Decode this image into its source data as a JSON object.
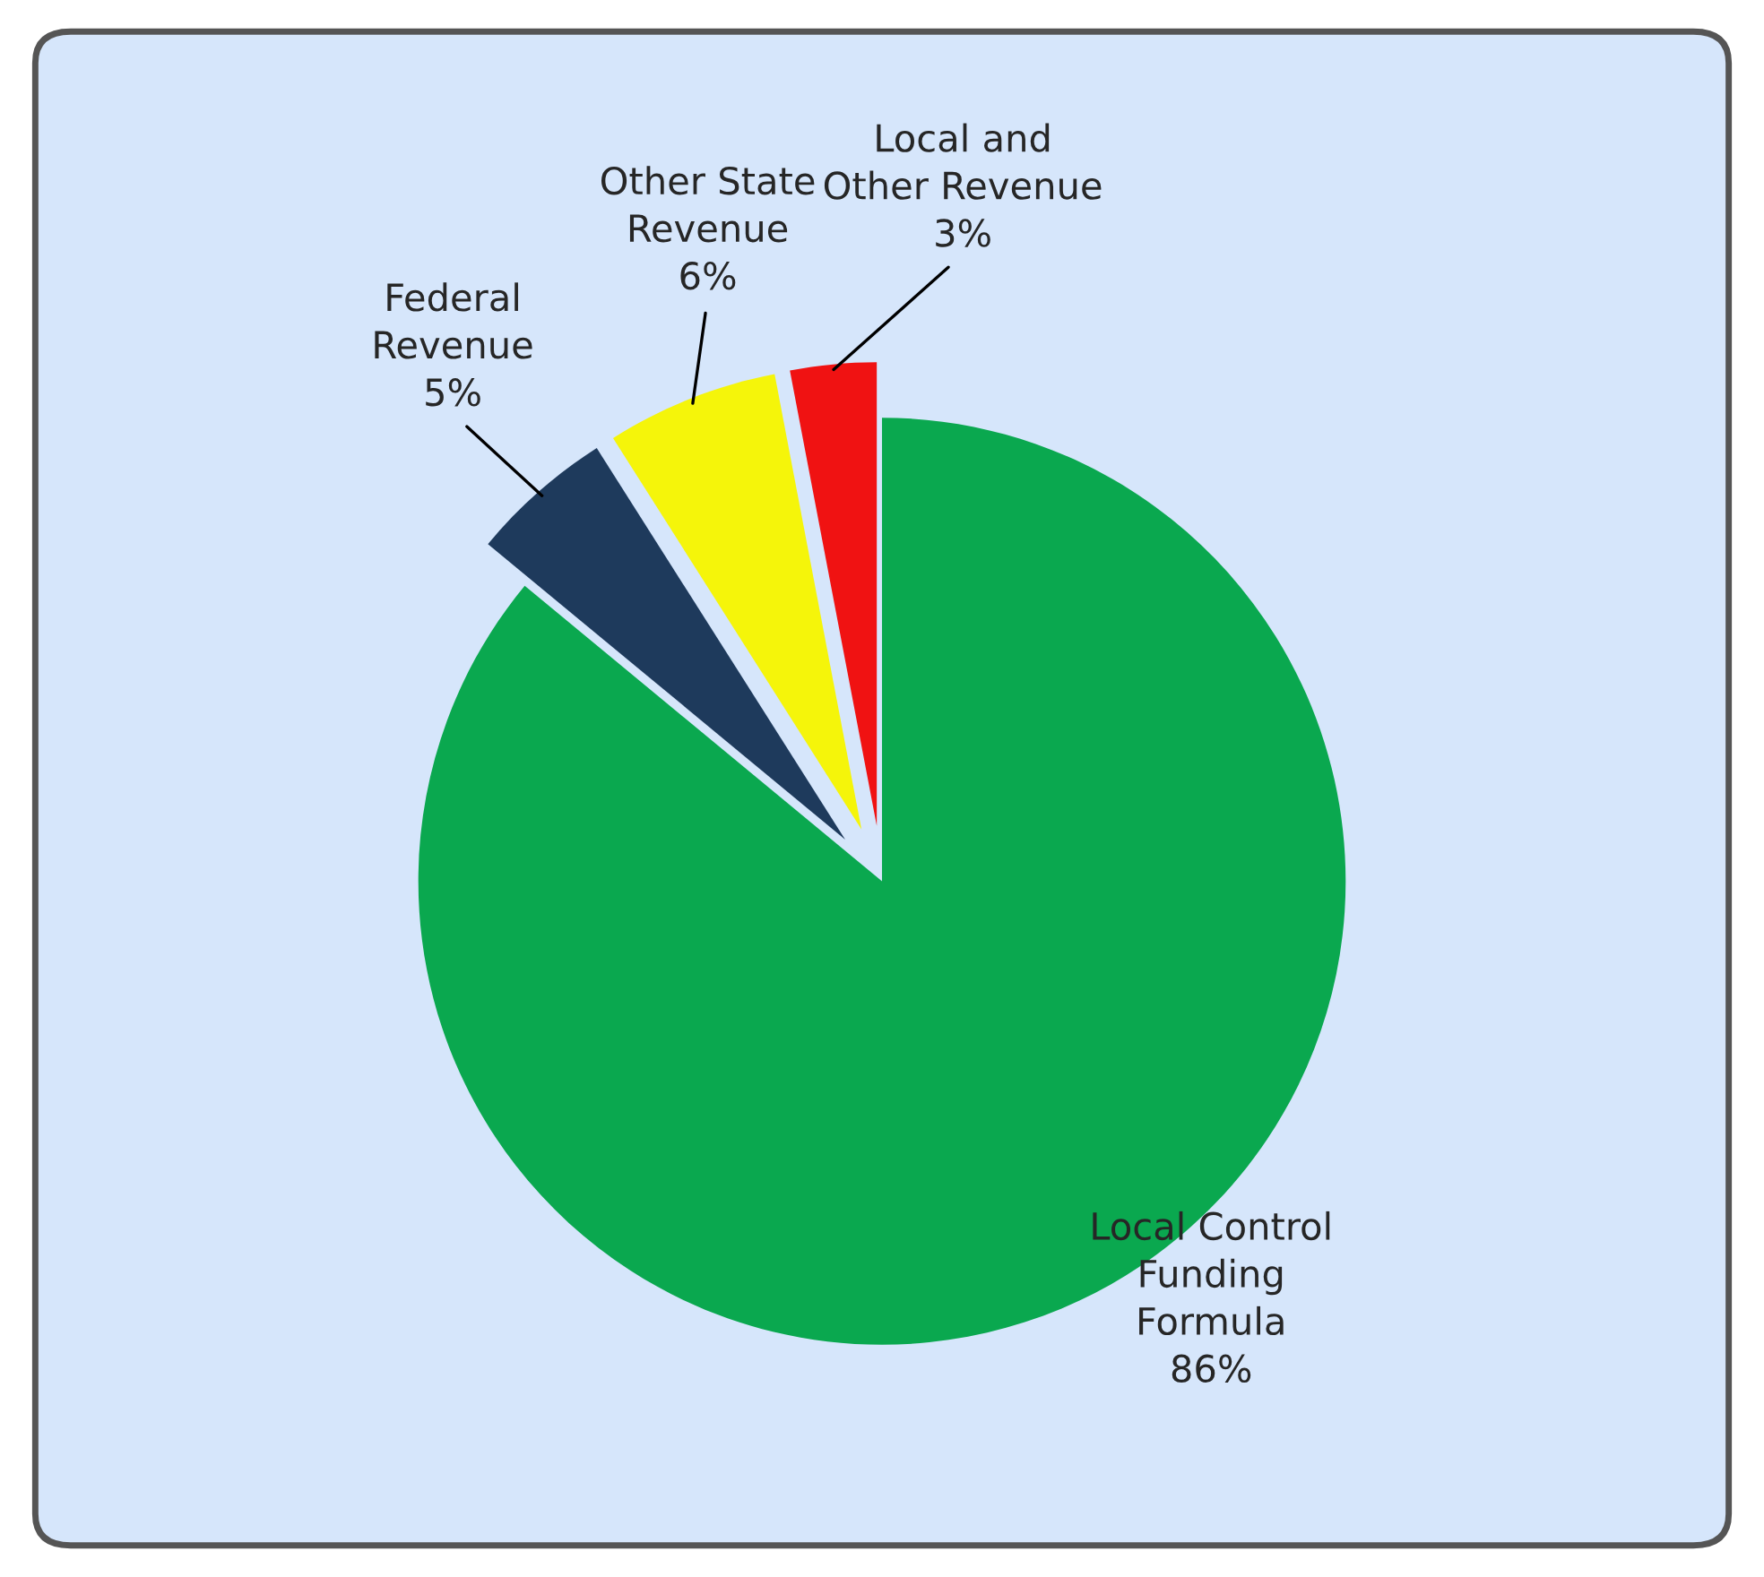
{
  "chart_data": {
    "type": "pie",
    "categories": [
      "Local Control Funding Formula",
      "Federal Revenue",
      "Other State Revenue",
      "Local and Other Revenue"
    ],
    "values": [
      86,
      5,
      6,
      3
    ],
    "colors": [
      "#0aa84f",
      "#1e3a5c",
      "#f5f50a",
      "#f01212"
    ],
    "value_labels": [
      "86%",
      "5%",
      "6%",
      "3%"
    ]
  }
}
